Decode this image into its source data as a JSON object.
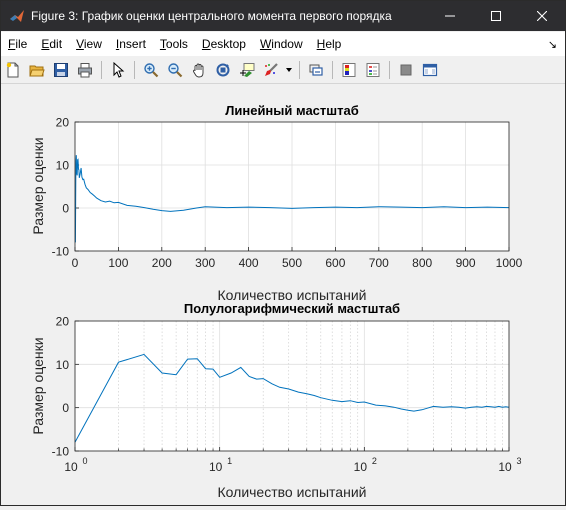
{
  "window": {
    "title": "Figure 3: График оценки центрального момента первого порядка"
  },
  "menu": {
    "items": [
      {
        "id": "file",
        "u": "F",
        "rest": "ile"
      },
      {
        "id": "edit",
        "u": "E",
        "rest": "dit"
      },
      {
        "id": "view",
        "u": "V",
        "rest": "iew"
      },
      {
        "id": "insert",
        "u": "I",
        "rest": "nsert"
      },
      {
        "id": "tools",
        "u": "T",
        "rest": "ools"
      },
      {
        "id": "desktop",
        "u": "D",
        "rest": "esktop"
      },
      {
        "id": "window",
        "u": "W",
        "rest": "indow"
      },
      {
        "id": "help",
        "u": "H",
        "rest": "elp"
      }
    ],
    "overflow_arrow": "↘"
  },
  "toolbar": {
    "icons": [
      "new-figure-icon",
      "open-file-icon",
      "save-icon",
      "print-icon",
      "edit-plot-icon",
      "zoom-in-icon",
      "zoom-out-icon",
      "pan-icon",
      "rotate-3d-icon",
      "data-cursor-icon",
      "brush-icon",
      "brush-dropdown-icon",
      "link-plot-icon",
      "insert-colorbar-icon",
      "insert-legend-icon",
      "hide-plot-tools-icon",
      "show-plot-tools-icon"
    ]
  },
  "chart_data": [
    {
      "type": "line",
      "title": "Линейный мастштаб",
      "xlabel": "Количество испытаний",
      "ylabel": "Размер оценки",
      "xscale": "linear",
      "xlim": [
        0,
        1000
      ],
      "ylim": [
        -10,
        20
      ],
      "xticks": [
        0,
        100,
        200,
        300,
        400,
        500,
        600,
        700,
        800,
        900,
        1000
      ],
      "xtick_labels": [
        "0",
        "100",
        "200",
        "300",
        "400",
        "500",
        "600",
        "700",
        "800",
        "900",
        "1000"
      ],
      "yticks": [
        -10,
        0,
        10,
        20
      ],
      "ytick_labels": [
        "-10",
        "0",
        "10",
        "20"
      ],
      "grid": true,
      "color": "#0072bd",
      "x": [
        1,
        2,
        3,
        4,
        5,
        6,
        7,
        8,
        9,
        10,
        12,
        14,
        16,
        18,
        20,
        23,
        26,
        30,
        35,
        40,
        45,
        50,
        60,
        70,
        80,
        90,
        100,
        120,
        140,
        160,
        180,
        200,
        220,
        250,
        280,
        300,
        350,
        400,
        450,
        500,
        550,
        600,
        650,
        700,
        750,
        800,
        850,
        900,
        950,
        1000
      ],
      "y": [
        -8,
        10.5,
        12.3,
        8,
        7.6,
        11.2,
        11.3,
        9,
        8.9,
        7,
        8,
        9.3,
        7.2,
        6.6,
        6.7,
        5.5,
        4.7,
        4.3,
        3.6,
        3.2,
        2.8,
        2.3,
        1.7,
        1.4,
        1.6,
        1.2,
        1.3,
        0.6,
        0.4,
        0.1,
        -0.3,
        -0.6,
        -0.8,
        -0.5,
        0,
        0.3,
        0.1,
        0.2,
        0.1,
        -0.1,
        0.1,
        0.2,
        0.1,
        0.3,
        0.2,
        0.1,
        0.3,
        0.1,
        0.2,
        0.1
      ]
    },
    {
      "type": "line",
      "title": "Полулогарифмический мастштаб",
      "xlabel": "Количество испытаний",
      "ylabel": "Размер оценки",
      "xscale": "log",
      "xlim": [
        1,
        1000
      ],
      "ylim": [
        -10,
        20
      ],
      "xtick_labels": [
        {
          "base": "10",
          "exp": "0"
        },
        {
          "base": "10",
          "exp": "1"
        },
        {
          "base": "10",
          "exp": "2"
        },
        {
          "base": "10",
          "exp": "3"
        }
      ],
      "yticks": [
        -10,
        0,
        10,
        20
      ],
      "ytick_labels": [
        "-10",
        "0",
        "10",
        "20"
      ],
      "grid": true,
      "color": "#0072bd",
      "x": [
        1,
        2,
        3,
        4,
        5,
        6,
        7,
        8,
        9,
        10,
        12,
        14,
        16,
        18,
        20,
        23,
        26,
        30,
        35,
        40,
        45,
        50,
        60,
        70,
        80,
        90,
        100,
        120,
        140,
        160,
        180,
        200,
        220,
        250,
        280,
        300,
        350,
        400,
        450,
        500,
        550,
        600,
        650,
        700,
        750,
        800,
        850,
        900,
        950,
        1000
      ],
      "y": [
        -8,
        10.5,
        12.3,
        8,
        7.6,
        11.2,
        11.3,
        9,
        8.9,
        7,
        8,
        9.3,
        7.2,
        6.6,
        6.7,
        5.5,
        4.7,
        4.3,
        3.6,
        3.2,
        2.8,
        2.3,
        1.7,
        1.4,
        1.6,
        1.2,
        1.3,
        0.6,
        0.4,
        0.1,
        -0.3,
        -0.6,
        -0.8,
        -0.5,
        0,
        0.3,
        0.1,
        0.2,
        0.1,
        -0.1,
        0.1,
        0.2,
        0.1,
        0.3,
        0.2,
        0.1,
        0.3,
        0.1,
        0.2,
        0.1
      ]
    }
  ]
}
